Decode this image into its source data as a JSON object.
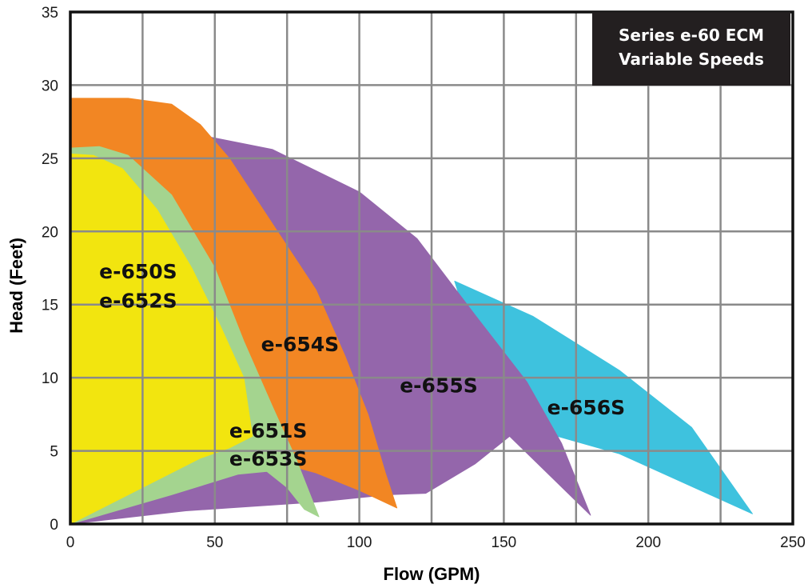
{
  "chart_data": {
    "type": "area",
    "title_lines": [
      "Series e-60 ECM",
      "Variable Speeds"
    ],
    "xlabel": "Flow (GPM)",
    "ylabel": "Head (Feet)",
    "xlim": [
      0,
      250
    ],
    "ylim": [
      0,
      35
    ],
    "x_ticks": [
      0,
      50,
      100,
      150,
      200,
      250
    ],
    "y_ticks": [
      0,
      5,
      10,
      15,
      20,
      25,
      30,
      35
    ],
    "grid": true,
    "colors": {
      "grid": "#8a8a8a",
      "frame": "#111111",
      "title_box": "#231f20"
    },
    "series": [
      {
        "name": "e-656S",
        "labels": [
          "e-656S"
        ],
        "color": "#3ec2de",
        "boundary": [
          [
            133,
            16.6
          ],
          [
            160,
            14.2
          ],
          [
            190,
            10.5
          ],
          [
            215,
            6.6
          ],
          [
            236,
            0.7
          ],
          [
            190,
            4.8
          ],
          [
            165,
            6.2
          ],
          [
            150,
            6.0
          ]
        ]
      },
      {
        "name": "e-655S",
        "labels": [
          "e-655S"
        ],
        "color": "#9466ab",
        "boundary": [
          [
            47,
            26.5
          ],
          [
            70,
            25.6
          ],
          [
            100,
            22.7
          ],
          [
            120,
            19.5
          ],
          [
            140,
            14.3
          ],
          [
            158,
            9.7
          ],
          [
            170,
            5.5
          ],
          [
            180,
            0.6
          ],
          [
            166,
            3.3
          ],
          [
            152,
            6.0
          ],
          [
            140,
            4.1
          ],
          [
            123,
            2.1
          ],
          [
            110,
            2.0
          ],
          [
            85,
            1.5
          ],
          [
            40,
            0.9
          ],
          [
            0,
            0
          ]
        ]
      },
      {
        "name": "e-654S",
        "labels": [
          "e-654S"
        ],
        "color": "#f28623",
        "boundary": [
          [
            0,
            29.1
          ],
          [
            20,
            29.1
          ],
          [
            35,
            28.7
          ],
          [
            45,
            27.3
          ],
          [
            55,
            25.0
          ],
          [
            70,
            20.5
          ],
          [
            85,
            16.0
          ],
          [
            95,
            11.5
          ],
          [
            103,
            7.5
          ],
          [
            109,
            3.5
          ],
          [
            113,
            1.1
          ],
          [
            100,
            2.3
          ],
          [
            85,
            3.5
          ],
          [
            70,
            4.3
          ],
          [
            55,
            4.8
          ],
          [
            30,
            3.4
          ],
          [
            0,
            0
          ]
        ]
      },
      {
        "name": "e-651S / e-653S",
        "labels": [
          "e-651S",
          "e-653S"
        ],
        "color": "#a4d48f",
        "boundary": [
          [
            0,
            25.7
          ],
          [
            10,
            25.8
          ],
          [
            20,
            25.2
          ],
          [
            35,
            22.5
          ],
          [
            50,
            17.5
          ],
          [
            60,
            12.5
          ],
          [
            70,
            8.0
          ],
          [
            78,
            4.5
          ],
          [
            83,
            2.0
          ],
          [
            86,
            0.5
          ],
          [
            81,
            1.0
          ],
          [
            75,
            2.5
          ],
          [
            68,
            3.6
          ],
          [
            58,
            3.4
          ],
          [
            35,
            2.0
          ],
          [
            0,
            0
          ]
        ]
      },
      {
        "name": "e-650S / e-652S",
        "labels": [
          "e-650S",
          "e-652S"
        ],
        "color": "#f2e50f",
        "boundary": [
          [
            0,
            25.3
          ],
          [
            8,
            25.2
          ],
          [
            18,
            24.3
          ],
          [
            30,
            21.5
          ],
          [
            42,
            17.5
          ],
          [
            52,
            13.5
          ],
          [
            60,
            10.0
          ],
          [
            63,
            6.0
          ],
          [
            55,
            5.2
          ],
          [
            45,
            4.5
          ],
          [
            25,
            2.5
          ],
          [
            0,
            0
          ]
        ]
      }
    ]
  }
}
